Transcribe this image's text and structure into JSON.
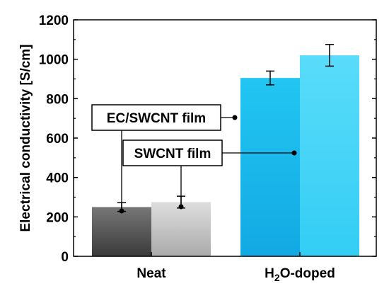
{
  "chart_data": {
    "type": "bar",
    "ylabel": "Electrical conductivity [S/cm]",
    "ylim": [
      0,
      1200
    ],
    "yticks": [
      0,
      200,
      400,
      600,
      800,
      1000,
      1200
    ],
    "groups": [
      {
        "label": "Neat",
        "label_main": "Neat",
        "label_sub": "",
        "label_rest": ""
      },
      {
        "label": "H2O-doped",
        "label_main": "H",
        "label_sub": "2",
        "label_rest": "O-doped"
      }
    ],
    "series": [
      {
        "name": "EC/SWCNT film",
        "values": [
          250,
          905
        ],
        "errors": [
          22,
          35
        ],
        "colors": [
          "#555555",
          "#15b4ea"
        ]
      },
      {
        "name": "SWCNT film",
        "values": [
          275,
          1020
        ],
        "errors": [
          30,
          55
        ],
        "colors": [
          "#c8c8c8",
          "#4cd4f6"
        ]
      }
    ],
    "annotations": [
      {
        "text": "EC/SWCNT film",
        "points_to_series": 0
      },
      {
        "text": "SWCNT film",
        "points_to_series": 1
      }
    ]
  }
}
